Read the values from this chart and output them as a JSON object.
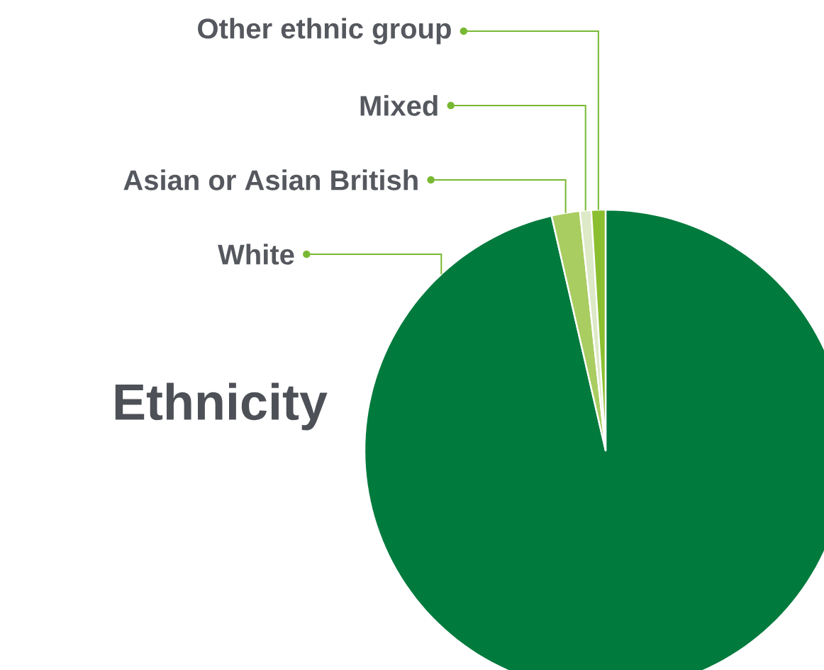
{
  "chart_data": {
    "type": "pie",
    "title": "Ethnicity",
    "categories": [
      "White",
      "Asian or Asian British",
      "Mixed",
      "Other ethnic group"
    ],
    "values": [
      96.4,
      1.9,
      0.75,
      0.95
    ],
    "colors": [
      "#007a3d",
      "#a9cd61",
      "#dde9c7",
      "#8bbf2f"
    ]
  }
}
